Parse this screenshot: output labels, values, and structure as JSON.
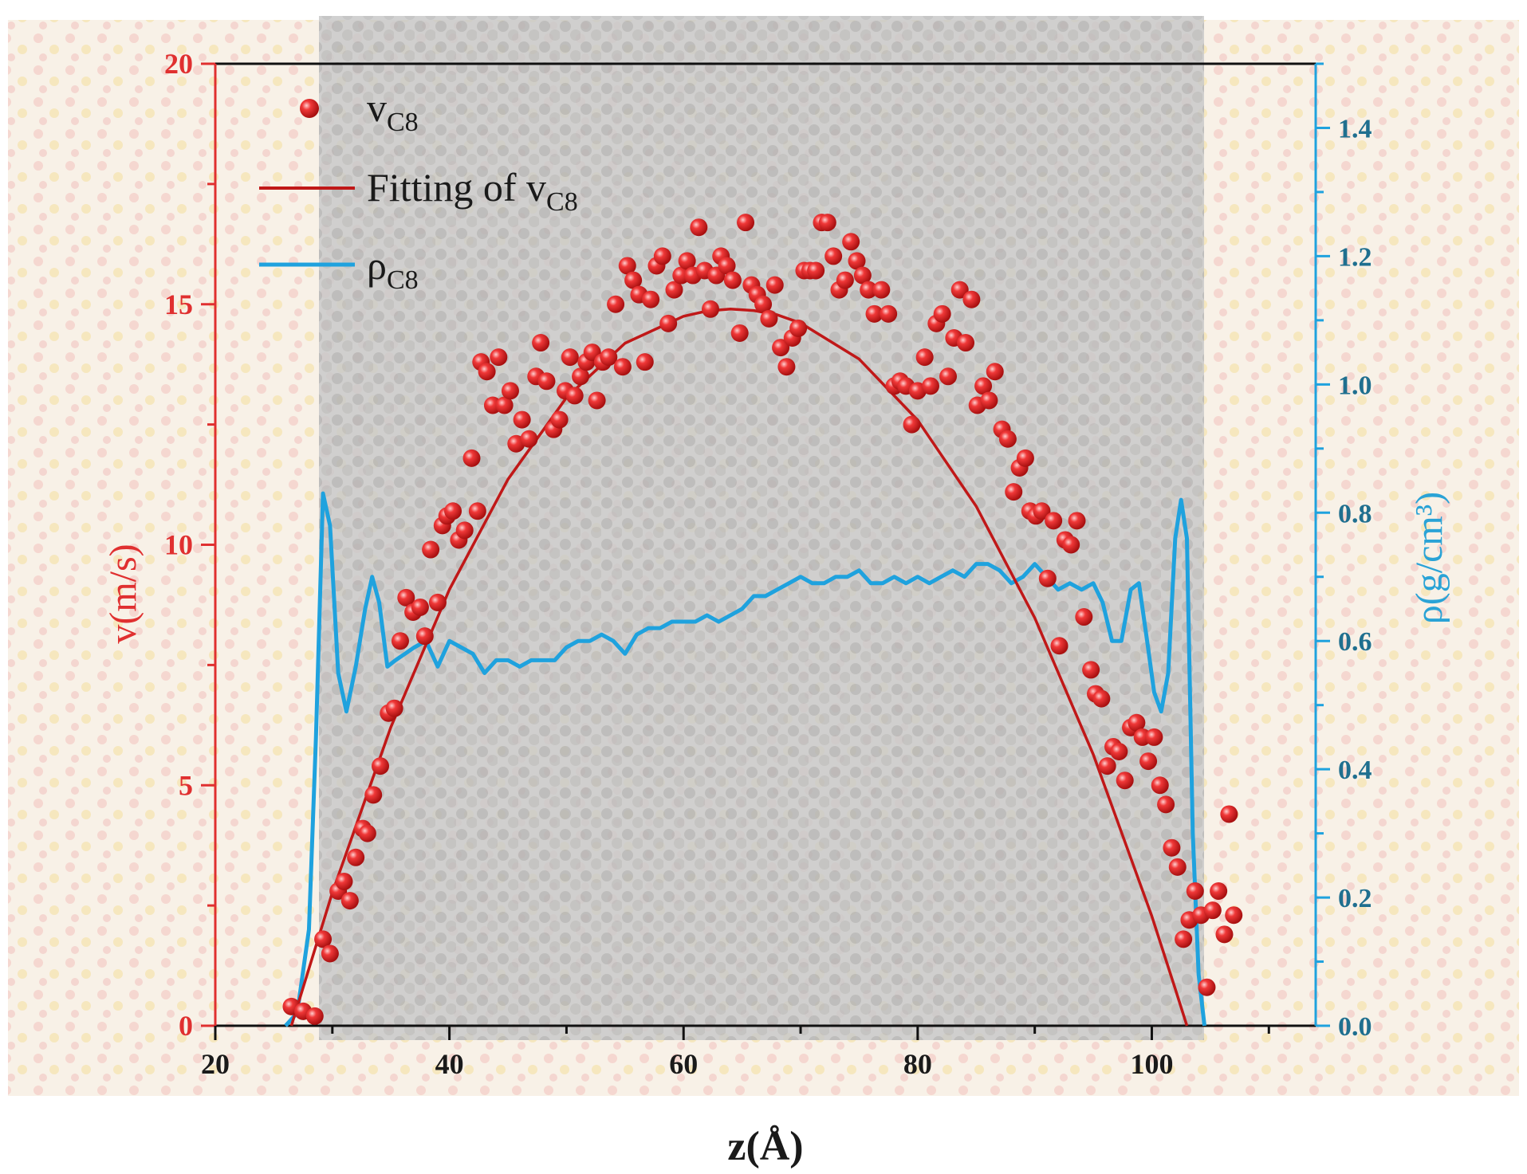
{
  "chart_data": {
    "type": "scatter",
    "xlabel": "z(Å)",
    "ylabel_left": "v(m/s)",
    "ylabel_right": "ρ(g/cm³)",
    "xlim": [
      20,
      114
    ],
    "ylim_left": [
      0,
      20
    ],
    "ylim_right": [
      0,
      1.5
    ],
    "x_ticks": [
      20,
      40,
      60,
      80,
      100
    ],
    "y_left_ticks": [
      0,
      5,
      10,
      15,
      20
    ],
    "y_right_ticks": [
      "0.0",
      "0.2",
      "0.4",
      "0.6",
      "0.8",
      "1.0",
      "1.2",
      "1.4"
    ],
    "legend": {
      "placement": "top-left",
      "entries": [
        {
          "text": "v",
          "sub": "C8",
          "marker": "red-sphere"
        },
        {
          "text": "Fitting of v",
          "sub": "C8",
          "marker": "dark-red-line"
        },
        {
          "text": "ρ",
          "sub": "C8",
          "marker": "blue-line"
        }
      ]
    },
    "colors": {
      "velocity": "#ee2a2a",
      "fit": "#c01818",
      "density": "#1fa2de",
      "left_axis": "#e03030",
      "right_axis": "#1f6f8f"
    },
    "series": [
      {
        "name": "vC8",
        "axis": "left",
        "kind": "scatter",
        "points": [
          [
            26.5,
            0.4
          ],
          [
            27.5,
            0.3
          ],
          [
            28.5,
            0.2
          ],
          [
            29.2,
            1.8
          ],
          [
            29.8,
            1.5
          ],
          [
            30.5,
            2.8
          ],
          [
            31.0,
            3.0
          ],
          [
            31.5,
            2.6
          ],
          [
            32.0,
            3.5
          ],
          [
            32.6,
            4.1
          ],
          [
            33.0,
            4.0
          ],
          [
            33.5,
            4.8
          ],
          [
            34.1,
            5.4
          ],
          [
            34.8,
            6.5
          ],
          [
            35.3,
            6.6
          ],
          [
            35.8,
            8.0
          ],
          [
            36.3,
            8.9
          ],
          [
            36.9,
            8.6
          ],
          [
            37.5,
            8.7
          ],
          [
            37.9,
            8.1
          ],
          [
            38.4,
            9.9
          ],
          [
            39.0,
            8.8
          ],
          [
            39.4,
            10.4
          ],
          [
            39.8,
            10.6
          ],
          [
            40.3,
            10.7
          ],
          [
            40.8,
            10.1
          ],
          [
            41.3,
            10.3
          ],
          [
            41.9,
            11.8
          ],
          [
            42.4,
            10.7
          ],
          [
            42.7,
            13.8
          ],
          [
            43.2,
            13.6
          ],
          [
            43.7,
            12.9
          ],
          [
            44.2,
            13.9
          ],
          [
            44.7,
            12.9
          ],
          [
            45.2,
            13.2
          ],
          [
            45.7,
            12.1
          ],
          [
            46.2,
            12.6
          ],
          [
            46.8,
            12.2
          ],
          [
            47.4,
            13.5
          ],
          [
            47.8,
            14.2
          ],
          [
            48.3,
            13.4
          ],
          [
            48.9,
            12.4
          ],
          [
            49.4,
            12.6
          ],
          [
            49.9,
            13.2
          ],
          [
            50.3,
            13.9
          ],
          [
            50.7,
            13.1
          ],
          [
            51.2,
            13.5
          ],
          [
            51.7,
            13.8
          ],
          [
            52.2,
            14.0
          ],
          [
            52.6,
            13.0
          ],
          [
            53.1,
            13.8
          ],
          [
            53.6,
            13.9
          ],
          [
            54.2,
            15.0
          ],
          [
            54.8,
            13.7
          ],
          [
            55.2,
            15.8
          ],
          [
            55.7,
            15.5
          ],
          [
            56.2,
            15.2
          ],
          [
            56.7,
            13.8
          ],
          [
            57.2,
            15.1
          ],
          [
            57.7,
            15.8
          ],
          [
            58.2,
            16.0
          ],
          [
            58.7,
            14.6
          ],
          [
            59.2,
            15.3
          ],
          [
            59.8,
            15.6
          ],
          [
            60.3,
            15.9
          ],
          [
            60.8,
            15.6
          ],
          [
            61.3,
            16.6
          ],
          [
            61.8,
            15.7
          ],
          [
            62.3,
            14.9
          ],
          [
            62.8,
            15.6
          ],
          [
            63.2,
            16.0
          ],
          [
            63.7,
            15.8
          ],
          [
            64.2,
            15.5
          ],
          [
            64.8,
            14.4
          ],
          [
            65.3,
            16.7
          ],
          [
            65.8,
            15.4
          ],
          [
            66.3,
            15.2
          ],
          [
            66.8,
            15.0
          ],
          [
            67.3,
            14.7
          ],
          [
            67.8,
            15.4
          ],
          [
            68.3,
            14.1
          ],
          [
            68.8,
            13.7
          ],
          [
            69.3,
            14.3
          ],
          [
            69.8,
            14.5
          ],
          [
            70.3,
            15.7
          ],
          [
            70.8,
            15.7
          ],
          [
            71.3,
            15.7
          ],
          [
            71.8,
            16.7
          ],
          [
            72.3,
            16.7
          ],
          [
            72.8,
            16.0
          ],
          [
            73.3,
            15.3
          ],
          [
            73.8,
            15.5
          ],
          [
            74.3,
            16.3
          ],
          [
            74.8,
            15.9
          ],
          [
            75.3,
            15.6
          ],
          [
            75.8,
            15.3
          ],
          [
            76.3,
            14.8
          ],
          [
            76.9,
            15.3
          ],
          [
            77.5,
            14.8
          ],
          [
            78.0,
            13.3
          ],
          [
            78.5,
            13.4
          ],
          [
            79.0,
            13.3
          ],
          [
            79.5,
            12.5
          ],
          [
            80.0,
            13.2
          ],
          [
            80.6,
            13.9
          ],
          [
            81.1,
            13.3
          ],
          [
            81.6,
            14.6
          ],
          [
            82.1,
            14.8
          ],
          [
            82.6,
            13.5
          ],
          [
            83.1,
            14.3
          ],
          [
            83.6,
            15.3
          ],
          [
            84.1,
            14.2
          ],
          [
            84.6,
            15.1
          ],
          [
            85.1,
            12.9
          ],
          [
            85.6,
            13.3
          ],
          [
            86.1,
            13.0
          ],
          [
            86.6,
            13.6
          ],
          [
            87.2,
            12.4
          ],
          [
            87.7,
            12.2
          ],
          [
            88.2,
            11.1
          ],
          [
            88.7,
            11.6
          ],
          [
            89.2,
            11.8
          ],
          [
            89.6,
            10.7
          ],
          [
            90.1,
            10.6
          ],
          [
            90.6,
            10.7
          ],
          [
            91.1,
            9.3
          ],
          [
            91.6,
            10.5
          ],
          [
            92.1,
            7.9
          ],
          [
            92.6,
            10.1
          ],
          [
            93.1,
            10.0
          ],
          [
            93.6,
            10.5
          ],
          [
            94.2,
            8.5
          ],
          [
            94.8,
            7.4
          ],
          [
            95.2,
            6.9
          ],
          [
            95.7,
            6.8
          ],
          [
            96.2,
            5.4
          ],
          [
            96.7,
            5.8
          ],
          [
            97.2,
            5.7
          ],
          [
            97.7,
            5.1
          ],
          [
            98.2,
            6.2
          ],
          [
            98.7,
            6.3
          ],
          [
            99.2,
            6.0
          ],
          [
            99.7,
            5.5
          ],
          [
            100.2,
            6.0
          ],
          [
            100.7,
            5.0
          ],
          [
            101.2,
            4.6
          ],
          [
            101.7,
            3.7
          ],
          [
            102.2,
            3.3
          ],
          [
            102.7,
            1.8
          ],
          [
            103.2,
            2.2
          ],
          [
            103.7,
            2.8
          ],
          [
            104.2,
            2.3
          ],
          [
            104.7,
            0.8
          ],
          [
            105.2,
            2.4
          ],
          [
            105.7,
            2.8
          ],
          [
            106.2,
            1.9
          ],
          [
            106.6,
            4.4
          ],
          [
            107.0,
            2.3
          ]
        ]
      },
      {
        "name": "Fitting of vC8",
        "axis": "left",
        "kind": "line",
        "points": [
          [
            26.5,
            0.0
          ],
          [
            30,
            2.77
          ],
          [
            35,
            6.21
          ],
          [
            40,
            9.07
          ],
          [
            45,
            11.36
          ],
          [
            50,
            13.06
          ],
          [
            55,
            14.19
          ],
          [
            60,
            14.75
          ],
          [
            62,
            14.86
          ],
          [
            64,
            14.9
          ],
          [
            66,
            14.87
          ],
          [
            68,
            14.78
          ],
          [
            70,
            14.61
          ],
          [
            75,
            13.86
          ],
          [
            80,
            12.59
          ],
          [
            85,
            10.8
          ],
          [
            90,
            8.48
          ],
          [
            95,
            5.64
          ],
          [
            100,
            2.28
          ],
          [
            102,
            0.77
          ],
          [
            103,
            0.0
          ]
        ]
      },
      {
        "name": "ρC8",
        "axis": "right",
        "kind": "line",
        "points": [
          [
            26.0,
            0.0
          ],
          [
            27.0,
            0.02
          ],
          [
            28.0,
            0.15
          ],
          [
            28.6,
            0.45
          ],
          [
            29.2,
            0.83
          ],
          [
            29.8,
            0.78
          ],
          [
            30.5,
            0.55
          ],
          [
            31.2,
            0.49
          ],
          [
            32.0,
            0.56
          ],
          [
            32.8,
            0.65
          ],
          [
            33.4,
            0.7
          ],
          [
            34.0,
            0.66
          ],
          [
            34.7,
            0.56
          ],
          [
            35.4,
            0.57
          ],
          [
            36.2,
            0.58
          ],
          [
            37.0,
            0.59
          ],
          [
            38.0,
            0.6
          ],
          [
            39.0,
            0.56
          ],
          [
            40.0,
            0.6
          ],
          [
            41.0,
            0.59
          ],
          [
            42.0,
            0.58
          ],
          [
            43.0,
            0.55
          ],
          [
            44.0,
            0.57
          ],
          [
            45.0,
            0.57
          ],
          [
            46.0,
            0.56
          ],
          [
            47.0,
            0.57
          ],
          [
            48.0,
            0.57
          ],
          [
            49.0,
            0.57
          ],
          [
            50.0,
            0.59
          ],
          [
            51.0,
            0.6
          ],
          [
            52.0,
            0.6
          ],
          [
            53.0,
            0.61
          ],
          [
            54.0,
            0.6
          ],
          [
            55.0,
            0.58
          ],
          [
            56.0,
            0.61
          ],
          [
            57.0,
            0.62
          ],
          [
            58.0,
            0.62
          ],
          [
            59.0,
            0.63
          ],
          [
            60.0,
            0.63
          ],
          [
            61.0,
            0.63
          ],
          [
            62.0,
            0.64
          ],
          [
            63.0,
            0.63
          ],
          [
            64.0,
            0.64
          ],
          [
            65.0,
            0.65
          ],
          [
            66.0,
            0.67
          ],
          [
            67.0,
            0.67
          ],
          [
            68.0,
            0.68
          ],
          [
            69.0,
            0.69
          ],
          [
            70.0,
            0.7
          ],
          [
            71.0,
            0.69
          ],
          [
            72.0,
            0.69
          ],
          [
            73.0,
            0.7
          ],
          [
            74.0,
            0.7
          ],
          [
            75.0,
            0.71
          ],
          [
            76.0,
            0.69
          ],
          [
            77.0,
            0.69
          ],
          [
            78.0,
            0.7
          ],
          [
            79.0,
            0.69
          ],
          [
            80.0,
            0.7
          ],
          [
            81.0,
            0.69
          ],
          [
            82.0,
            0.7
          ],
          [
            83.0,
            0.71
          ],
          [
            84.0,
            0.7
          ],
          [
            85.0,
            0.72
          ],
          [
            86.0,
            0.72
          ],
          [
            87.0,
            0.71
          ],
          [
            88.0,
            0.69
          ],
          [
            89.0,
            0.7
          ],
          [
            90.0,
            0.72
          ],
          [
            91.0,
            0.7
          ],
          [
            92.0,
            0.68
          ],
          [
            93.0,
            0.69
          ],
          [
            94.0,
            0.68
          ],
          [
            95.0,
            0.69
          ],
          [
            95.8,
            0.66
          ],
          [
            96.6,
            0.6
          ],
          [
            97.4,
            0.6
          ],
          [
            98.2,
            0.68
          ],
          [
            98.9,
            0.69
          ],
          [
            99.6,
            0.6
          ],
          [
            100.2,
            0.52
          ],
          [
            100.8,
            0.49
          ],
          [
            101.4,
            0.55
          ],
          [
            102.0,
            0.76
          ],
          [
            102.5,
            0.82
          ],
          [
            103.0,
            0.76
          ],
          [
            103.5,
            0.3
          ],
          [
            104.0,
            0.08
          ],
          [
            104.5,
            0.0
          ]
        ]
      }
    ]
  }
}
